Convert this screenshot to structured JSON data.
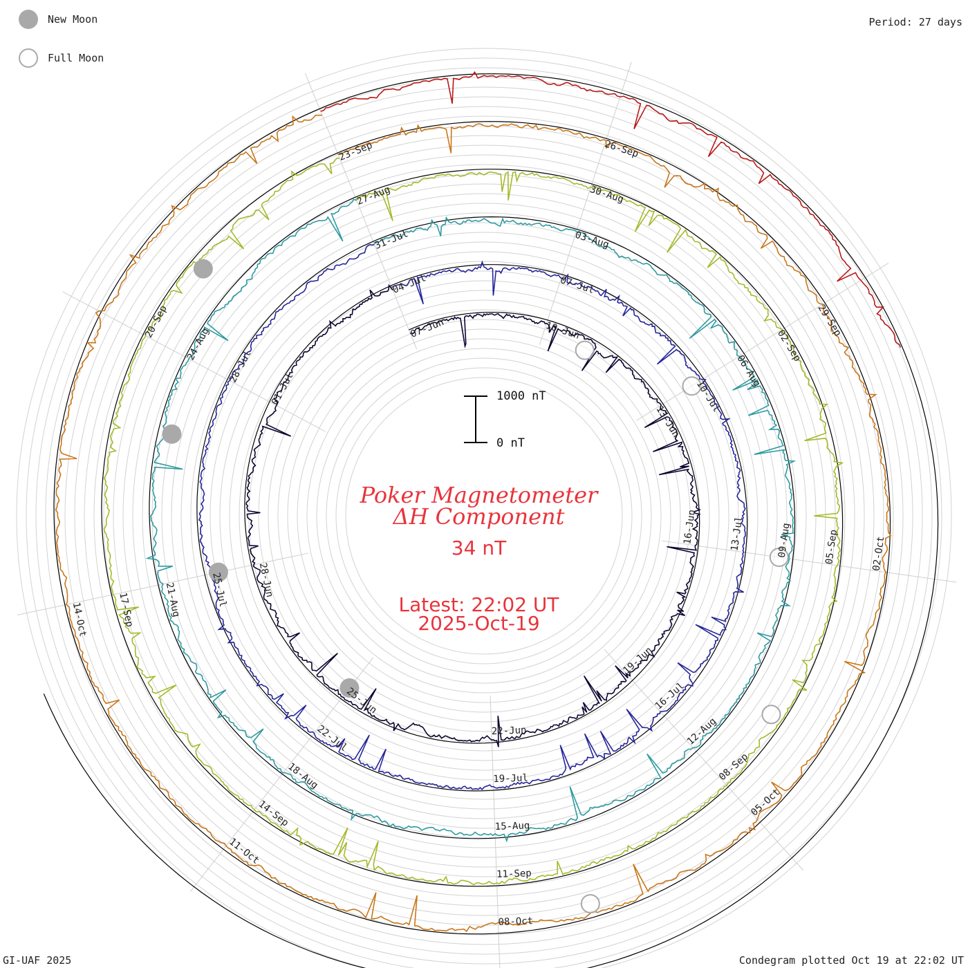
{
  "legend": {
    "new_moon_label": "New Moon",
    "full_moon_label": "Full Moon",
    "new_moon_color": "#a9a9a9",
    "full_moon_color": "#a9a9a9"
  },
  "header": {
    "period": "Period: 27 days"
  },
  "scale": {
    "top_label": "1000 nT",
    "bottom_label": "0 nT"
  },
  "center": {
    "title_line1": "Poker Magnetometer",
    "title_line2": "ΔH Component",
    "value": "34 nT",
    "latest_line1": "Latest: 22:02 UT",
    "latest_line2": "2025-Oct-19",
    "color": "#e8343c"
  },
  "footer": {
    "credit": "GI-UAF 2025",
    "plotted": "Condegram plotted Oct 19 at 22:02 UT"
  },
  "chart_data": {
    "type": "condegram",
    "title": "Poker Magnetometer ΔH Component",
    "period_days": 27,
    "current_value_nT": 34,
    "scale_bar_nT": [
      0,
      1000
    ],
    "rings": [
      {
        "ring": 1,
        "color": "#0b0530",
        "date_labels": [
          "07-Jun",
          "10-Jun",
          "13-Jun",
          "16-Jun",
          "19-Jun",
          "22-Jun",
          "25-Jun",
          "28-Jun",
          "01-Jul"
        ]
      },
      {
        "ring": 2,
        "color": "#25259a",
        "date_labels": [
          "04-Jul",
          "07-Jul",
          "10-Jul",
          "13-Jul",
          "16-Jul",
          "19-Jul",
          "22-Jul",
          "25-Jul",
          "28-Jul"
        ]
      },
      {
        "ring": 3,
        "color": "#2e9aa0",
        "date_labels": [
          "31-Jul",
          "03-Aug",
          "06-Aug",
          "09-Aug",
          "12-Aug",
          "15-Aug",
          "18-Aug",
          "21-Aug",
          "24-Aug"
        ]
      },
      {
        "ring": 4,
        "color": "#a6b82a",
        "date_labels": [
          "27-Aug",
          "30-Aug",
          "02-Sep",
          "05-Sep",
          "08-Sep",
          "11-Sep",
          "14-Sep",
          "17-Sep",
          "20-Sep"
        ]
      },
      {
        "ring": 5,
        "color": "#c8761a",
        "date_labels": [
          "23-Sep",
          "26-Sep",
          "29-Sep",
          "02-Oct",
          "05-Oct",
          "08-Oct",
          "11-Oct",
          "14-Oct"
        ]
      },
      {
        "ring": 6,
        "color": "#b81818",
        "date_labels": []
      }
    ],
    "new_moons": [
      "25-Jun",
      "25-Jul",
      "23-Aug",
      "21-Sep"
    ],
    "full_moons": [
      "11-Jun",
      "10-Jul",
      "09-Aug",
      "07-Sep",
      "07-Oct"
    ]
  }
}
